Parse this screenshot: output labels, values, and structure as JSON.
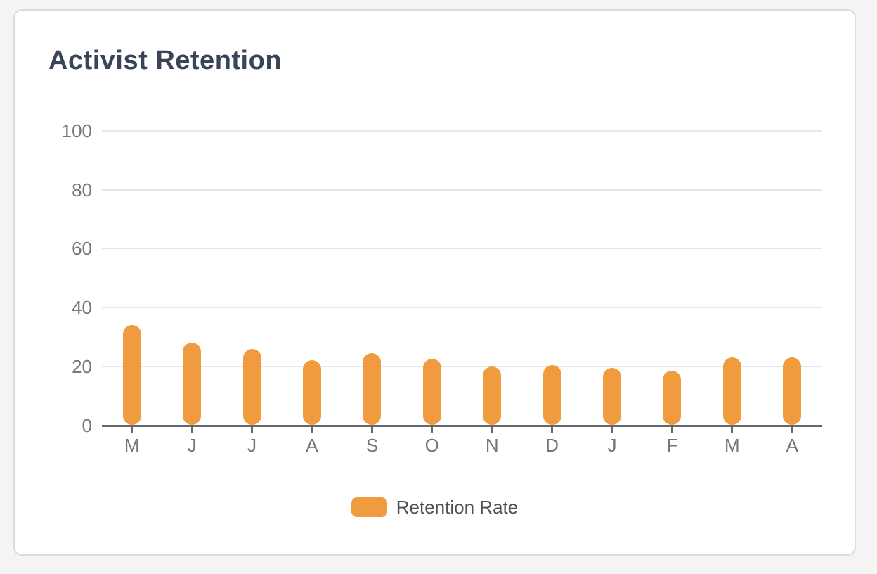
{
  "card": {
    "title": "Activist Retention"
  },
  "chart_data": {
    "type": "bar",
    "title": "Activist Retention",
    "categories": [
      "M",
      "J",
      "J",
      "A",
      "S",
      "O",
      "N",
      "D",
      "J",
      "F",
      "M",
      "A"
    ],
    "series": [
      {
        "name": "Retention Rate",
        "values": [
          34,
          28,
          26,
          22,
          24.5,
          22.5,
          20,
          20.5,
          19.5,
          18.5,
          23,
          23
        ],
        "color": "#ef9b3e"
      }
    ],
    "xlabel": "",
    "ylabel": "",
    "ylim": [
      0,
      100
    ],
    "yticks": [
      0,
      20,
      40,
      60,
      80,
      100
    ],
    "grid": true,
    "legend_position": "bottom"
  },
  "legend": {
    "label": "Retention Rate"
  },
  "colors": {
    "page_background": "#f4f4f5",
    "card_background": "#ffffff",
    "card_border": "#d7dbe2",
    "title_text": "#3a4459",
    "bar_fill": "#ef9b3e",
    "gridline": "#e3e7f1",
    "axis_line": "#65696f",
    "tick_label_text": "#72767d",
    "legend_text": "#4e5257"
  }
}
